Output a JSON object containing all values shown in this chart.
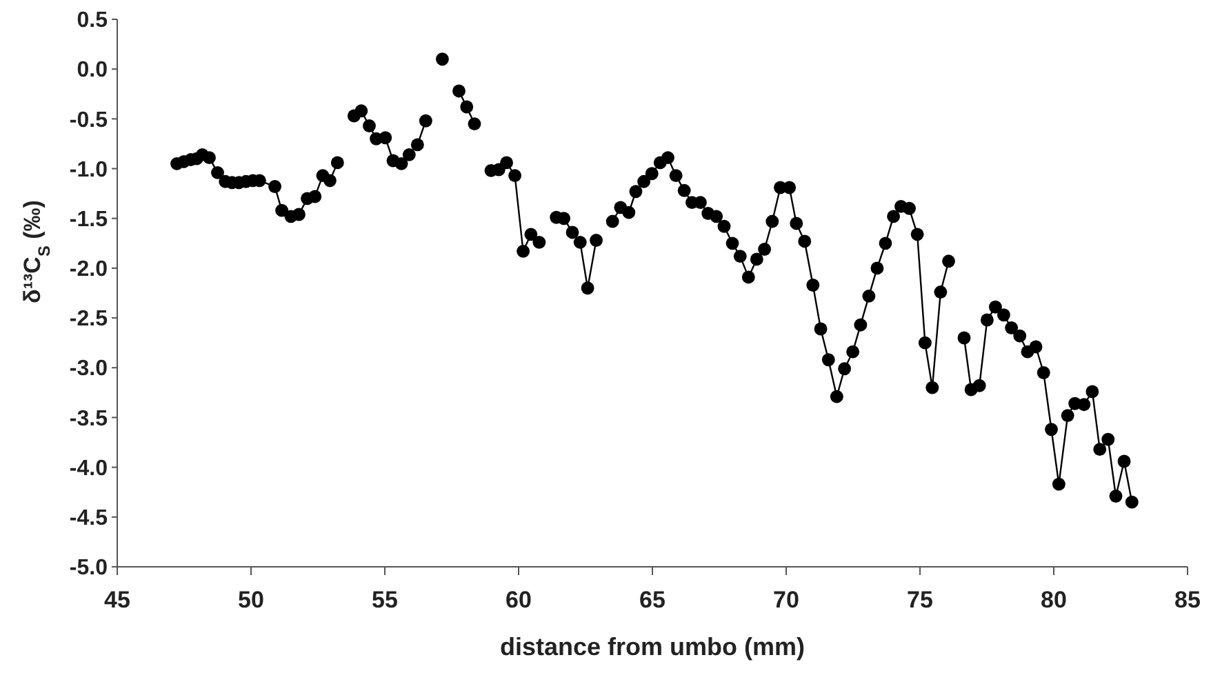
{
  "chart_data": {
    "type": "line",
    "xlabel": "distance from umbo (mm)",
    "ylabel": "δ¹³C$_{S}$ (‰)",
    "xlim": [
      45,
      85
    ],
    "xticks": [
      45,
      50,
      55,
      60,
      65,
      70,
      75,
      80,
      85
    ],
    "ylim": [
      -5.0,
      0.5
    ],
    "yticks": [
      0.5,
      {
        "value": 0,
        "label": "0.0"
      },
      -0.5,
      {
        "value": -1,
        "label": "-1.0"
      },
      -1.5,
      {
        "value": -2,
        "label": "-2.0"
      },
      -2.5,
      {
        "value": -3,
        "label": "-3.0"
      },
      -3.5,
      {
        "value": -4,
        "label": "-4.0"
      },
      -4.5,
      {
        "value": -5,
        "label": "-5.0"
      }
    ],
    "grid": false,
    "marker": "circle",
    "line_style": "solid",
    "series": [
      {
        "color": "#000000",
        "x": [
          47.23,
          47.49,
          47.75,
          47.97,
          48.18,
          48.44,
          48.75,
          49.04,
          49.29,
          49.55,
          49.81,
          50.07,
          50.32,
          50.89,
          51.15,
          51.49,
          51.79,
          52.1,
          52.39,
          52.68,
          52.95,
          53.23,
          53.5,
          53.85,
          54.12,
          54.42,
          54.68,
          55.02,
          55.31,
          55.62,
          55.91,
          56.22,
          56.53,
          56.8,
          57.15,
          57.5,
          57.77,
          58.06,
          58.35,
          58.7,
          58.97,
          59.26,
          59.55,
          59.86,
          60.17,
          60.46,
          60.77,
          61.1,
          61.41,
          61.69,
          62.01,
          62.3,
          62.58,
          62.9,
          63.2,
          63.51,
          63.81,
          64.12,
          64.38,
          64.68,
          64.98,
          65.29,
          65.58,
          65.88,
          66.19,
          66.48,
          66.79,
          67.08,
          67.39,
          67.68,
          67.99,
          68.28,
          68.59,
          68.9,
          69.19,
          69.48,
          69.78,
          70.12,
          70.38,
          70.69,
          71.0,
          71.29,
          71.58,
          71.89,
          72.18,
          72.49,
          72.78,
          73.09,
          73.4,
          73.71,
          74.01,
          74.29,
          74.6,
          74.9,
          75.19,
          75.46,
          75.77,
          76.07,
          76.4,
          76.65,
          76.91,
          77.22,
          77.51,
          77.82,
          78.13,
          78.42,
          78.73,
          79.02,
          79.33,
          79.62,
          79.91,
          80.19,
          80.52,
          80.79,
          81.13,
          81.44,
          81.72,
          82.03,
          82.32,
          82.63,
          82.92
        ],
        "values": [
          -0.95,
          -0.93,
          -0.91,
          -0.9,
          -0.86,
          -0.89,
          -1.04,
          -1.13,
          -1.14,
          -1.14,
          -1.13,
          -1.12,
          -1.12,
          -1.18,
          -1.42,
          -1.48,
          -1.46,
          -1.3,
          -1.28,
          -1.07,
          -1.12,
          -0.94,
          null,
          -0.47,
          -0.42,
          -0.57,
          -0.7,
          -0.69,
          -0.92,
          -0.95,
          -0.86,
          -0.76,
          -0.52,
          null,
          0.1,
          null,
          -0.22,
          -0.38,
          -0.55,
          null,
          -1.02,
          -1.01,
          -0.94,
          -1.07,
          -1.83,
          -1.66,
          -1.74,
          null,
          -1.49,
          -1.5,
          -1.64,
          -1.74,
          -2.2,
          -1.72,
          null,
          -1.53,
          -1.39,
          -1.44,
          -1.23,
          -1.13,
          -1.05,
          -0.94,
          -0.89,
          -1.07,
          -1.22,
          -1.34,
          -1.34,
          -1.45,
          -1.48,
          -1.58,
          -1.75,
          -1.88,
          -2.09,
          -1.91,
          -1.81,
          -1.53,
          -1.19,
          -1.19,
          -1.55,
          -1.73,
          -2.17,
          -2.61,
          -2.92,
          -3.29,
          -3.01,
          -2.84,
          -2.57,
          -2.28,
          -2.0,
          -1.75,
          -1.48,
          -1.38,
          -1.4,
          -1.66,
          -2.75,
          -3.2,
          -2.24,
          -1.93,
          null,
          -2.7,
          -3.22,
          -3.18,
          -2.52,
          -2.39,
          -2.47,
          -2.6,
          -2.68,
          -2.84,
          -2.79,
          -3.05,
          -3.62,
          -4.17,
          -3.48,
          -3.36,
          -3.37,
          -3.24,
          -3.82,
          -3.72,
          -4.29,
          -3.94,
          -4.35
        ]
      }
    ]
  }
}
